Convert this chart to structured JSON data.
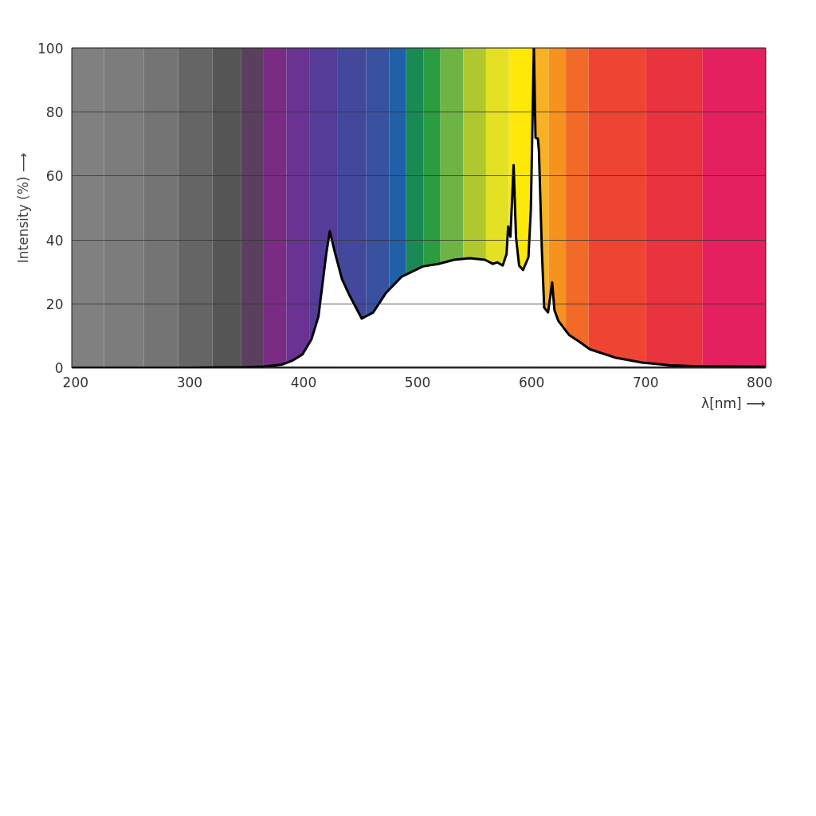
{
  "chart_data": {
    "type": "area",
    "xlabel": "λ[nm] ⟶",
    "ylabel": "Intensity (%) ⟶",
    "xlim": [
      197,
      805
    ],
    "ylim": [
      0,
      100
    ],
    "xticks": [
      200,
      300,
      400,
      500,
      600,
      700,
      800
    ],
    "yticks": [
      0,
      20,
      40,
      60,
      80,
      100
    ],
    "grid": "y",
    "series": [
      {
        "color": "#ffffff",
        "x": [
          197,
          250,
          300,
          350,
          365,
          381,
          390,
          399,
          407,
          413,
          420,
          423,
          427.5,
          433.7,
          440.5,
          451,
          461,
          472,
          486,
          504.5,
          518,
          532,
          545.7,
          559,
          566,
          570,
          574.6,
          578,
          579.4,
          581.4,
          584.2,
          586.3,
          589,
          592.4,
          597.2,
          599.3,
          602,
          603.4,
          605.5,
          606.4,
          609,
          611,
          614.4,
          618,
          620,
          623.4,
          633,
          642,
          651,
          674,
          697,
          720,
          743,
          770,
          805
        ],
        "values": [
          0,
          0,
          0,
          0.2,
          0.4,
          1,
          2.2,
          4.2,
          9,
          16,
          36,
          42.7,
          36,
          27.7,
          22.5,
          15.4,
          17.3,
          23.3,
          28.5,
          31.7,
          32.5,
          33.8,
          34.3,
          33.8,
          32.5,
          33,
          32,
          35.6,
          44.2,
          41,
          63.4,
          40.8,
          32,
          30.6,
          34.6,
          49.5,
          100,
          72,
          71.7,
          67.8,
          36.4,
          18.8,
          17.3,
          26.7,
          18,
          14.7,
          10.2,
          8.1,
          5.8,
          3.1,
          1.6,
          0.8,
          0.5,
          0.4,
          0.3
        ]
      }
    ],
    "bands": [
      {
        "axis": "x",
        "from": 197,
        "to": 225,
        "color": "#808080"
      },
      {
        "axis": "x",
        "from": 225,
        "to": 260,
        "color": "#7c7c7c"
      },
      {
        "axis": "x",
        "from": 260,
        "to": 290,
        "color": "#747474"
      },
      {
        "axis": "x",
        "from": 290,
        "to": 320,
        "color": "#656565"
      },
      {
        "axis": "x",
        "from": 320,
        "to": 345,
        "color": "#555555"
      },
      {
        "axis": "x",
        "from": 345,
        "to": 365,
        "color": "#5a3f5e"
      },
      {
        "axis": "x",
        "from": 365,
        "to": 385,
        "color": "#7a2c84"
      },
      {
        "axis": "x",
        "from": 385,
        "to": 405,
        "color": "#6a3292"
      },
      {
        "axis": "x",
        "from": 405,
        "to": 430,
        "color": "#553c98"
      },
      {
        "axis": "x",
        "from": 430,
        "to": 455,
        "color": "#43489c"
      },
      {
        "axis": "x",
        "from": 455,
        "to": 475,
        "color": "#3852a0"
      },
      {
        "axis": "x",
        "from": 475,
        "to": 490,
        "color": "#1f60a8"
      },
      {
        "axis": "x",
        "from": 490,
        "to": 505,
        "color": "#1a8a55"
      },
      {
        "axis": "x",
        "from": 505,
        "to": 520,
        "color": "#2c9c40"
      },
      {
        "axis": "x",
        "from": 520,
        "to": 540,
        "color": "#6db444"
      },
      {
        "axis": "x",
        "from": 540,
        "to": 560,
        "color": "#b0c830"
      },
      {
        "axis": "x",
        "from": 560,
        "to": 580,
        "color": "#e4e024"
      },
      {
        "axis": "x",
        "from": 580,
        "to": 600,
        "color": "#fde80a"
      },
      {
        "axis": "x",
        "from": 600,
        "to": 615,
        "color": "#f9b122"
      },
      {
        "axis": "x",
        "from": 615,
        "to": 630,
        "color": "#f7921e"
      },
      {
        "axis": "x",
        "from": 630,
        "to": 650,
        "color": "#f16a28"
      },
      {
        "axis": "x",
        "from": 650,
        "to": 700,
        "color": "#ee4432"
      },
      {
        "axis": "x",
        "from": 700,
        "to": 750,
        "color": "#e9333f"
      },
      {
        "axis": "x",
        "from": 750,
        "to": 805,
        "color": "#e5205e"
      }
    ]
  }
}
